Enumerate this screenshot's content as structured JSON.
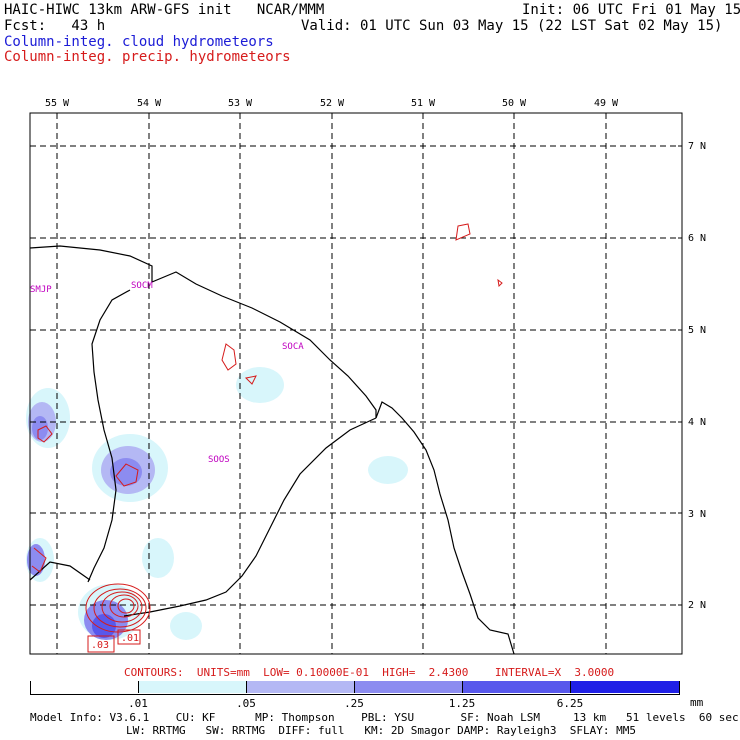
{
  "header": {
    "title": "HAIC-HIWC 13km ARW-GFS init   NCAR/MMM",
    "init": "Init: 06 UTC Fri 01 May 15",
    "fcst": "Fcst:   43 h",
    "valid": "Valid: 01 UTC Sun 03 May 15 (22 LST Sat 02 May 15)",
    "field1": "Column-integ. cloud hydrometeors",
    "field2": "Column-integ. precip. hydrometeors"
  },
  "colors": {
    "field1": "#1b1bd6",
    "field2": "#d61b1b",
    "contour": "#d61b1b",
    "coast": "#000000",
    "station": "#c000c0",
    "shade": [
      "#ffffff",
      "#d8f6fb",
      "#b4b8f4",
      "#8c8cf0",
      "#5858ec",
      "#2020e6"
    ]
  },
  "map": {
    "lon_labels": [
      "55 W",
      "54 W",
      "53 W",
      "52 W",
      "51 W",
      "50 W",
      "49 W"
    ],
    "lat_labels": [
      "7 N",
      "6 N",
      "5 N",
      "4 N",
      "3 N",
      "2 N"
    ],
    "stations": [
      "SMJP",
      "SOCM",
      "SOCA",
      "SOOS"
    ],
    "contour_labels": [
      ".03",
      ".01"
    ]
  },
  "contours_info": "CONTOURS:  UNITS=mm  LOW= 0.10000E-01  HIGH=  2.4300    INTERVAL=X  3.0000",
  "colorbar": {
    "ticks": [
      ".01",
      ".05",
      ".25",
      "1.25",
      "6.25"
    ],
    "units": "mm"
  },
  "model_info": {
    "line1": "Model Info: V3.6.1    CU: KF      MP: Thompson    PBL: YSU       SF: Noah LSM     13 km   51 levels  60 sec",
    "line2": "LW: RRTMG   SW: RRTMG  DIFF: full   KM: 2D Smagor DAMP: Rayleigh3  SFLAY: MM5"
  }
}
